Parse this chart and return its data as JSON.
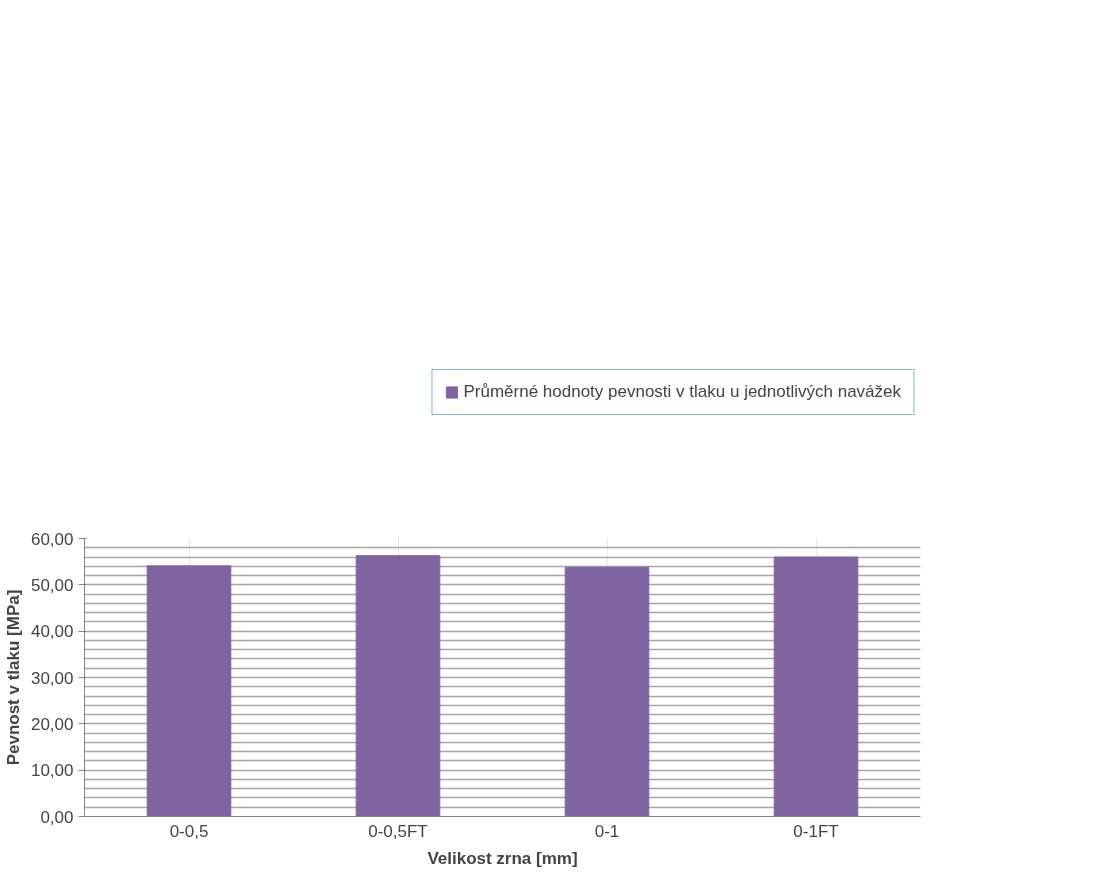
{
  "chart_data": {
    "type": "bar",
    "categories": [
      "0-0,5",
      "0-0,5FT",
      "0-1",
      "0-1FT"
    ],
    "series": [
      {
        "name": "Průměrné hodnoty pevnosti v tlaku u jednotlivých navážek",
        "color": "#8064a2",
        "values": [
          54.1,
          56.3,
          53.8,
          56.0
        ]
      }
    ],
    "xlabel": "Velikost zrna [mm]",
    "ylabel": "Pevnost v tlaku [MPa]",
    "ylim": [
      0,
      60
    ],
    "yticks": [
      {
        "value": 0,
        "label": "0,00"
      },
      {
        "value": 10,
        "label": "10,00"
      },
      {
        "value": 20,
        "label": "20,00"
      },
      {
        "value": 30,
        "label": "30,00"
      },
      {
        "value": 40,
        "label": "40,00"
      },
      {
        "value": 50,
        "label": "50,00"
      },
      {
        "value": 60,
        "label": "60,00"
      }
    ],
    "grid": true,
    "legend": "top right"
  }
}
